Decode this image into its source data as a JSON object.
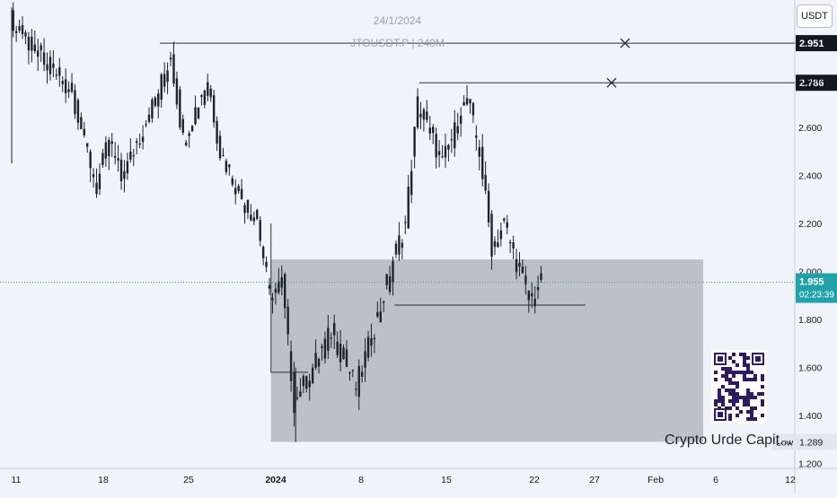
{
  "header": {
    "date_watermark": "24/1/2024",
    "symbol_watermark": "JTOUSDT.P | 240M",
    "currency": "USDT"
  },
  "brand": {
    "text": "Crypto Urde Capit..."
  },
  "price_tags": {
    "level_high": "2.951",
    "level_mid": "2.786",
    "last_price": "1.955",
    "countdown": "02:23:39",
    "low_label": "Low",
    "low_value": "1.289"
  },
  "colors": {
    "background": "#f0f3fa",
    "candle": "#1e222d",
    "zone": "#a9acb3",
    "last_price": "#22a2a8"
  },
  "chart_data": {
    "type": "candlestick",
    "x_ticks": [
      "11",
      "18",
      "25",
      "2024",
      "8",
      "15",
      "22",
      "27",
      "Feb",
      "6",
      "12"
    ],
    "y_ticks": [
      1.2,
      1.4,
      1.6,
      1.8,
      2.0,
      2.2,
      2.4,
      2.6,
      2.8
    ],
    "ylim": [
      1.18,
      3.1
    ],
    "x_range_dates": [
      "2023-12-11",
      "2024-02-12"
    ],
    "levels": [
      {
        "price": 2.951,
        "from": "2023-12-23"
      },
      {
        "price": 2.786,
        "from": "2024-01-13"
      }
    ],
    "zone": {
      "from": "2024-01-01",
      "to": "2024-02-05",
      "top": 2.05,
      "bottom": 1.29
    },
    "support_line": {
      "price": 1.86,
      "from": "2024-01-11",
      "to": "2024-01-23"
    },
    "last_price": 1.955,
    "low": 1.289,
    "path": [
      {
        "date": "2023-12-11",
        "price": 3.05
      },
      {
        "date": "2023-12-14",
        "price": 2.85
      },
      {
        "date": "2023-12-16",
        "price": 2.75
      },
      {
        "date": "2023-12-18",
        "price": 2.35
      },
      {
        "date": "2023-12-19",
        "price": 2.55
      },
      {
        "date": "2023-12-20",
        "price": 2.38
      },
      {
        "date": "2023-12-23",
        "price": 2.75
      },
      {
        "date": "2023-12-24",
        "price": 2.9
      },
      {
        "date": "2023-12-25",
        "price": 2.55
      },
      {
        "date": "2023-12-27",
        "price": 2.8
      },
      {
        "date": "2023-12-28",
        "price": 2.5
      },
      {
        "date": "2023-12-30",
        "price": 2.28
      },
      {
        "date": "2023-12-31",
        "price": 2.22
      },
      {
        "date": "2024-01-01",
        "price": 1.9
      },
      {
        "date": "2024-01-02",
        "price": 1.95
      },
      {
        "date": "2024-01-03",
        "price": 1.45
      },
      {
        "date": "2024-01-06",
        "price": 1.75
      },
      {
        "date": "2024-01-08",
        "price": 1.52
      },
      {
        "date": "2024-01-10",
        "price": 1.85
      },
      {
        "date": "2024-01-11",
        "price": 2.05
      },
      {
        "date": "2024-01-12",
        "price": 2.2
      },
      {
        "date": "2024-01-13",
        "price": 2.7
      },
      {
        "date": "2024-01-15",
        "price": 2.45
      },
      {
        "date": "2024-01-17",
        "price": 2.72
      },
      {
        "date": "2024-01-18",
        "price": 2.5
      },
      {
        "date": "2024-01-19",
        "price": 2.1
      },
      {
        "date": "2024-01-20",
        "price": 2.2
      },
      {
        "date": "2024-01-22",
        "price": 1.88
      },
      {
        "date": "2024-01-23",
        "price": 1.95
      }
    ]
  }
}
